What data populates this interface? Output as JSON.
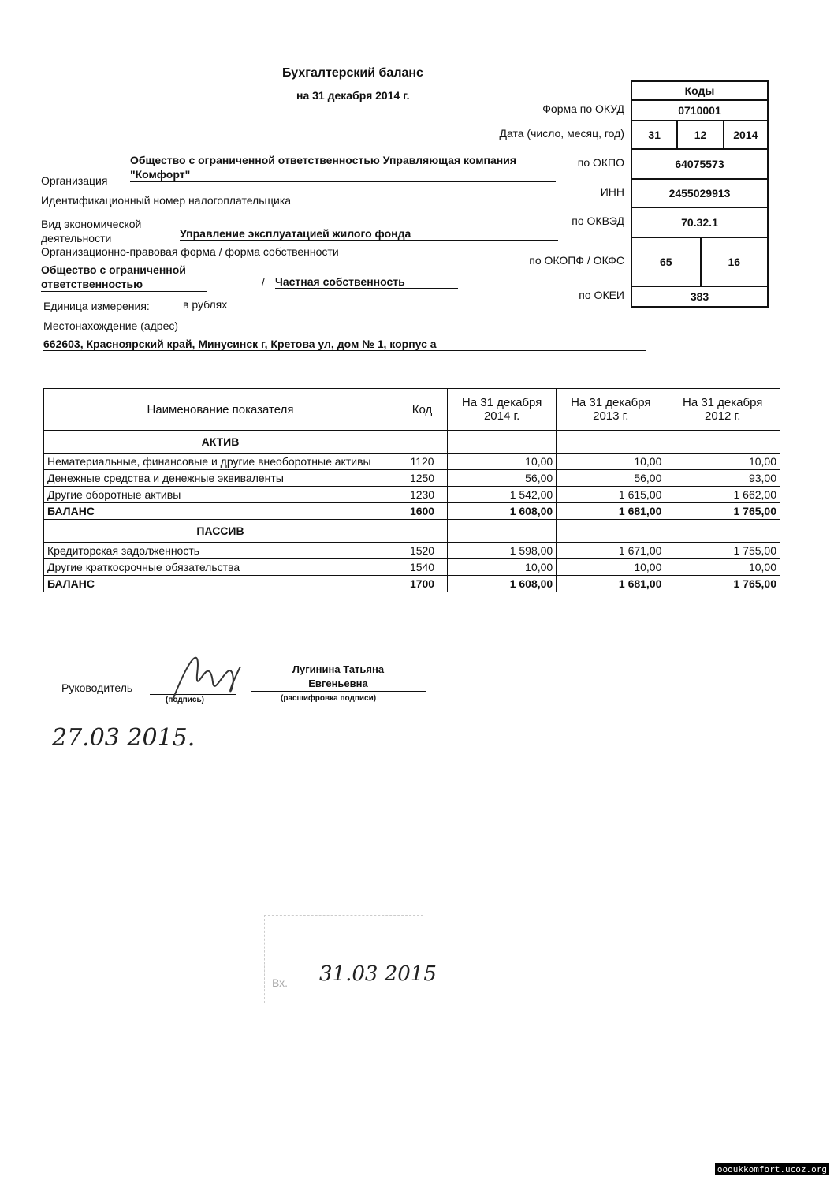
{
  "header": {
    "title": "Бухгалтерский баланс",
    "subtitle": "на 31 декабря 2014 г."
  },
  "codes": {
    "title": "Коды",
    "rows": [
      {
        "label": "Форма по ОКУД",
        "values": [
          "0710001"
        ]
      },
      {
        "label": "Дата (число, месяц, год)",
        "values": [
          "31",
          "12",
          "2014"
        ]
      },
      {
        "label": "по ОКПО",
        "values": [
          "64075573"
        ]
      },
      {
        "label": "ИНН",
        "values": [
          "2455029913"
        ]
      },
      {
        "label": "по ОКВЭД",
        "values": [
          "70.32.1"
        ]
      },
      {
        "label": "по ОКОПФ / ОКФС",
        "values": [
          "65",
          "16"
        ]
      },
      {
        "label": "по ОКЕИ",
        "values": [
          "383"
        ]
      }
    ]
  },
  "fields": {
    "organization": {
      "label": "Организация",
      "value": "Общество с ограниченной ответственностью Управляющая компания \"Комфорт\""
    },
    "inn": {
      "label": "Идентификационный номер налогоплательщика"
    },
    "activity": {
      "label": "Вид экономической деятельности",
      "value": "Управление эксплуатацией жилого фонда"
    },
    "legal_form": {
      "label": "Организационно-правовая форма / форма собственности",
      "value": "Общество с ограниченной ответственностью",
      "separator": "/",
      "ownership": "Частная собственность"
    },
    "unit": {
      "label": "Единица измерения:",
      "value": "в рублях"
    },
    "location": {
      "label": "Местонахождение (адрес)",
      "value": "662603, Красноярский край, Минусинск г, Кретова ул, дом № 1, корпус а"
    }
  },
  "table": {
    "columns": [
      "Наименование показателя",
      "Код",
      "На 31 декабря 2014 г.",
      "На 31 декабря 2013 г.",
      "На 31 декабря 2012 г."
    ],
    "rows": [
      {
        "section": "АКТИВ"
      },
      {
        "cells": [
          "Нематериальные, финансовые и другие внеоборотные активы",
          "1120",
          "10,00",
          "10,00",
          "10,00"
        ]
      },
      {
        "cells": [
          "Денежные средства и денежные эквиваленты",
          "1250",
          "56,00",
          "56,00",
          "93,00"
        ]
      },
      {
        "cells": [
          "Другие оборотные активы",
          "1230",
          "1 542,00",
          "1 615,00",
          "1 662,00"
        ]
      },
      {
        "cells": [
          "БАЛАНС",
          "1600",
          "1 608,00",
          "1 681,00",
          "1 765,00"
        ],
        "bold": true
      },
      {
        "section": "ПАССИВ"
      },
      {
        "cells": [
          "Кредиторская задолженность",
          "1520",
          "1 598,00",
          "1 671,00",
          "1 755,00"
        ]
      },
      {
        "cells": [
          "Другие краткосрочные обязательства",
          "1540",
          "10,00",
          "10,00",
          "10,00"
        ]
      },
      {
        "cells": [
          "БАЛАНС",
          "1700",
          "1 608,00",
          "1 681,00",
          "1 765,00"
        ],
        "bold": true
      }
    ]
  },
  "signature": {
    "role": "Руководитель",
    "sign_caption": "(подпись)",
    "name": "Лугинина Татьяна Евгеньевна",
    "name_caption": "(расшифровка подписи)",
    "date": "27.03 2015."
  },
  "stamp": {
    "prefix": "Вх.",
    "date": "31.03 2015"
  },
  "footer": {
    "site": "oooukkomfort.ucoz.org"
  }
}
